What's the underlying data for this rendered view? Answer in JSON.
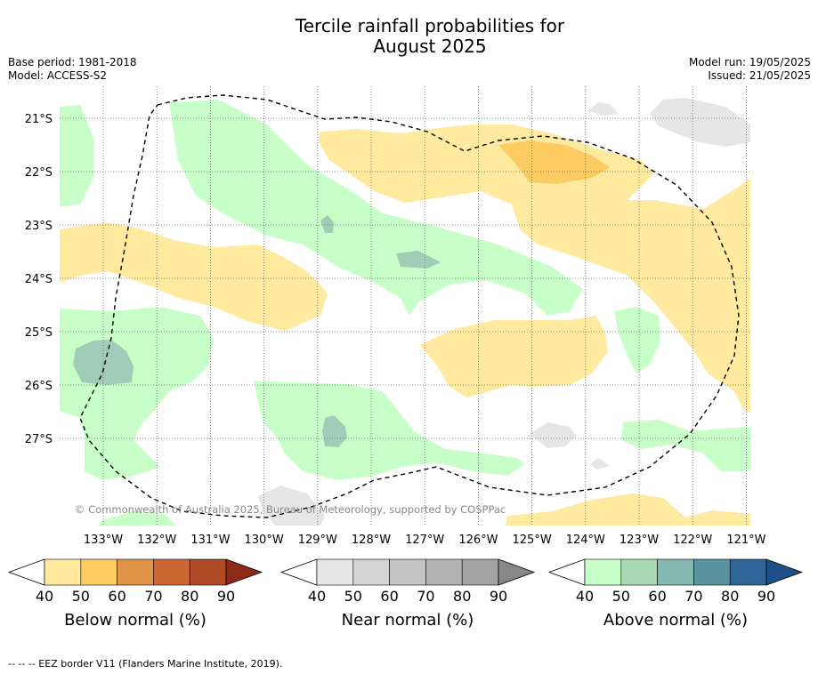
{
  "title_line1": "Tercile rainfall probabilities for",
  "title_line2": "August 2025",
  "base_period": "Base period: 1981-2018",
  "model": "Model: ACCESS-S2",
  "model_run": "Model run: 19/05/2025",
  "issued": "Issued: 21/05/2025",
  "copyright": "© Commonwealth of Australia 2025, Bureau of Meteorology, supported by COSPPac",
  "lat_labels": [
    "21°S",
    "22°S",
    "23°S",
    "24°S",
    "25°S",
    "26°S",
    "27°S"
  ],
  "lon_labels": [
    "133°W",
    "132°W",
    "131°W",
    "130°W",
    "129°W",
    "128°W",
    "127°W",
    "126°W",
    "125°W",
    "124°W",
    "123°W",
    "122°W",
    "121°W"
  ],
  "legends": [
    {
      "label": "Below normal (%)",
      "ticks": [
        "40",
        "50",
        "60",
        "70",
        "80",
        "90"
      ],
      "colors": [
        "#ffeaa0",
        "#fdcb62",
        "#e09445",
        "#cc6633",
        "#b04a27",
        "#8c2a18"
      ]
    },
    {
      "label": "Near normal (%)",
      "ticks": [
        "40",
        "50",
        "60",
        "70",
        "80",
        "90"
      ],
      "colors": [
        "#e6e6e6",
        "#d4d4d4",
        "#c4c4c4",
        "#b3b3b3",
        "#a3a3a3",
        "#888888"
      ]
    },
    {
      "label": "Above normal (%)",
      "ticks": [
        "40",
        "50",
        "60",
        "70",
        "80",
        "90"
      ],
      "colors": [
        "#c8ffc8",
        "#a8d9b4",
        "#84b8b0",
        "#5a93a0",
        "#2f6498",
        "#1d4f88"
      ]
    }
  ],
  "footer": "--  --  -- EEZ border V11 (Flanders Marine Institute, 2019)."
}
